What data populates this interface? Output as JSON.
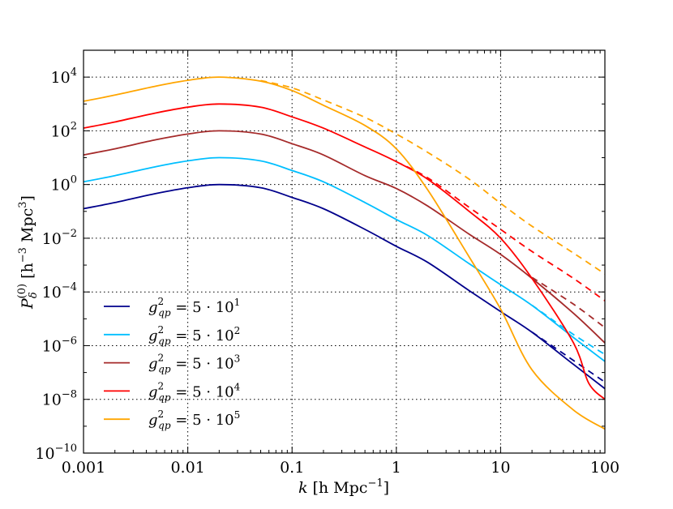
{
  "chart_data": {
    "type": "line",
    "xlabel": "k [h Mpc^-1]",
    "ylabel": "P_δ^(0) [h^-3 Mpc^3]",
    "xscale": "log",
    "yscale": "log",
    "xlim": [
      0.001,
      100
    ],
    "ylim": [
      1e-10,
      100000.0
    ],
    "xticks": [
      0.001,
      0.01,
      0.1,
      1,
      10,
      100
    ],
    "xtick_labels": [
      "0.001",
      "0.01",
      "0.1",
      "1",
      "10",
      "100"
    ],
    "yticks": [
      1e-10,
      1e-08,
      1e-06,
      0.0001,
      0.01,
      1,
      100.0,
      10000.0
    ],
    "ytick_exponents": [
      "-10",
      "-8",
      "-6",
      "-4",
      "-2",
      "0",
      "2",
      "4"
    ],
    "grid": true,
    "legend_placement": "lower-left",
    "series": [
      {
        "name": "g_qp^2 = 5·10^1",
        "label_exp": "1",
        "color": "#00008b",
        "style": "solid",
        "x": [
          0.001,
          0.002,
          0.005,
          0.01,
          0.02,
          0.05,
          0.1,
          0.2,
          0.5,
          1,
          2,
          5,
          10,
          20,
          50,
          100
        ],
        "y": [
          0.126,
          0.214,
          0.468,
          0.759,
          1,
          0.759,
          0.331,
          0.126,
          0.0214,
          0.005,
          0.00126,
          0.000112,
          1.86e-05,
          3.16e-06,
          2e-07,
          2.5e-08
        ]
      },
      {
        "name": "g_qp^2 = 5·10^2",
        "label_exp": "2",
        "color": "#00bfff",
        "style": "solid",
        "x": [
          0.001,
          0.002,
          0.005,
          0.01,
          0.02,
          0.05,
          0.1,
          0.2,
          0.5,
          1,
          2,
          5,
          10,
          20,
          50,
          100
        ],
        "y": [
          1.26,
          2.14,
          4.68,
          7.59,
          10,
          7.59,
          3.31,
          1.26,
          0.214,
          0.05,
          0.0126,
          0.00112,
          0.000186,
          3.16e-05,
          2e-06,
          2.6e-07
        ]
      },
      {
        "name": "g_qp^2 = 5·10^3",
        "label_exp": "3",
        "color": "#a52a2a",
        "style": "solid",
        "x": [
          0.001,
          0.002,
          0.005,
          0.01,
          0.02,
          0.05,
          0.1,
          0.2,
          0.5,
          1,
          2,
          5,
          10,
          20,
          50,
          100
        ],
        "y": [
          12.6,
          21.4,
          46.8,
          75.9,
          100,
          75.9,
          33.1,
          12.6,
          2.14,
          0.71,
          0.158,
          0.0141,
          0.0025,
          0.00032,
          1.6e-05,
          1.26e-06
        ]
      },
      {
        "name": "g_qp^2 = 5·10^4",
        "label_exp": "4",
        "color": "#ff0000",
        "style": "solid",
        "x": [
          0.001,
          0.002,
          0.005,
          0.01,
          0.02,
          0.05,
          0.1,
          0.2,
          0.5,
          1,
          2,
          5,
          10,
          20,
          50,
          70,
          100
        ],
        "y": [
          126,
          214,
          468,
          759,
          1000,
          759,
          331,
          126,
          25,
          7.1,
          1.58,
          0.1,
          0.01,
          0.00032,
          1.26e-06,
          4e-08,
          1e-08
        ]
      },
      {
        "name": "g_qp^2 = 5·10^5",
        "label_exp": "5",
        "color": "#ffa500",
        "style": "solid",
        "x": [
          0.001,
          0.002,
          0.005,
          0.01,
          0.02,
          0.05,
          0.1,
          0.2,
          0.5,
          1,
          2,
          5,
          10,
          20,
          50,
          100
        ],
        "y": [
          1260,
          2140,
          4680,
          7590,
          10000,
          7080,
          3160,
          890,
          158,
          21.4,
          0.63,
          0.002,
          2.3e-05,
          1.26e-07,
          4e-09,
          7.9e-10
        ]
      }
    ],
    "dashed_series": [
      {
        "color": "#00008b",
        "x": [
          20,
          50,
          100
        ],
        "y": [
          3.2e-06,
          2.8e-07,
          4.4e-08
        ]
      },
      {
        "color": "#00bfff",
        "x": [
          20,
          50,
          100
        ],
        "y": [
          3.2e-05,
          2.6e-06,
          4.7e-07
        ]
      },
      {
        "color": "#a52a2a",
        "x": [
          20,
          50,
          100
        ],
        "y": [
          0.00035,
          3.5e-05,
          4.7e-06
        ]
      },
      {
        "color": "#ff0000",
        "x": [
          1,
          2,
          5,
          10,
          20,
          50,
          100
        ],
        "y": [
          7.1,
          1.78,
          0.141,
          0.0214,
          0.0032,
          0.00032,
          4.7e-05
        ]
      },
      {
        "color": "#ffa500",
        "x": [
          0.05,
          0.1,
          0.2,
          0.5,
          1,
          2,
          5,
          10,
          20,
          50,
          100
        ],
        "y": [
          7410,
          3980,
          1410,
          316,
          76,
          15.8,
          1.58,
          0.2,
          0.028,
          0.0028,
          0.00047
        ]
      }
    ]
  }
}
